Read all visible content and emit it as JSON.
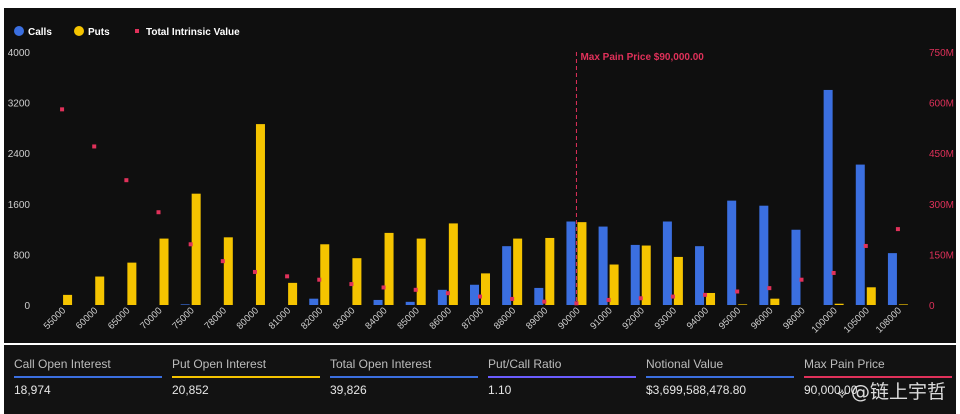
{
  "colors": {
    "calls": "#3b6fe0",
    "puts": "#f5c400",
    "intrinsic": "#e0315a",
    "maxpain": "#e0315a",
    "axis_left_text": "#cfcfcf",
    "axis_right_text": "#e0315a",
    "background": "#0f0f0f",
    "stat_call": "#3b6fe0",
    "stat_put": "#f5c400",
    "stat_total": "#3b6fe0",
    "stat_ratio": "#6a5cff",
    "stat_notional": "#3b6fe0",
    "stat_maxpain": "#e0315a"
  },
  "chart_data": {
    "type": "bar",
    "legend_position": "top-left",
    "legend": [
      "Calls",
      "Puts",
      "Total Intrinsic Value"
    ],
    "categories": [
      "55000",
      "60000",
      "65000",
      "70000",
      "75000",
      "78000",
      "80000",
      "81000",
      "82000",
      "83000",
      "84000",
      "85000",
      "86000",
      "87000",
      "88000",
      "89000",
      "90000",
      "91000",
      "92000",
      "93000",
      "94000",
      "95000",
      "96000",
      "98000",
      "100000",
      "105000",
      "108000"
    ],
    "series": [
      {
        "name": "Calls",
        "kind": "bar",
        "axis": "left",
        "values": [
          0,
          0,
          0,
          0,
          10,
          0,
          0,
          0,
          100,
          0,
          80,
          50,
          240,
          320,
          930,
          270,
          1320,
          1240,
          950,
          1320,
          930,
          1650,
          1570,
          1190,
          3400,
          2220,
          820
        ]
      },
      {
        "name": "Puts",
        "kind": "bar",
        "axis": "left",
        "values": [
          160,
          450,
          670,
          1050,
          1760,
          1070,
          2860,
          350,
          960,
          740,
          1140,
          1050,
          1290,
          500,
          1050,
          1060,
          1310,
          640,
          940,
          760,
          190,
          10,
          100,
          0,
          20,
          280,
          10
        ]
      },
      {
        "name": "Total Intrinsic Value",
        "kind": "scatter",
        "axis": "right",
        "values": [
          580,
          470,
          370,
          275,
          180,
          130,
          98,
          85,
          75,
          62,
          52,
          45,
          35,
          25,
          18,
          10,
          5,
          15,
          20,
          25,
          30,
          40,
          50,
          75,
          95,
          175,
          225
        ]
      }
    ],
    "y_left": {
      "min": 0,
      "max": 4000,
      "ticks": [
        0,
        800,
        1600,
        2400,
        3200,
        4000
      ],
      "tick_labels": [
        "0",
        "800",
        "1600",
        "2400",
        "3200",
        "4000"
      ]
    },
    "y_right": {
      "min": 0,
      "max": 750,
      "ticks": [
        0,
        150,
        300,
        450,
        600,
        750
      ],
      "tick_labels": [
        "0",
        "150M",
        "300M",
        "450M",
        "600M",
        "750M"
      ]
    },
    "max_pain": {
      "category": "90000",
      "label": "Max Pain Price $90,000.00"
    },
    "grid": false
  },
  "stats": [
    {
      "label": "Call Open Interest",
      "value": "18,974",
      "color_key": "stat_call"
    },
    {
      "label": "Put Open Interest",
      "value": "20,852",
      "color_key": "stat_put"
    },
    {
      "label": "Total Open Interest",
      "value": "39,826",
      "color_key": "stat_total"
    },
    {
      "label": "Put/Call Ratio",
      "value": "1.10",
      "color_key": "stat_ratio"
    },
    {
      "label": "Notional Value",
      "value": "$3,699,588,478.80",
      "color_key": "stat_notional"
    },
    {
      "label": "Max Pain Price",
      "value": "90,000.00",
      "color_key": "stat_maxpain"
    }
  ],
  "watermark": {
    "icon": "share-icon",
    "text": "@链上宇哲"
  }
}
